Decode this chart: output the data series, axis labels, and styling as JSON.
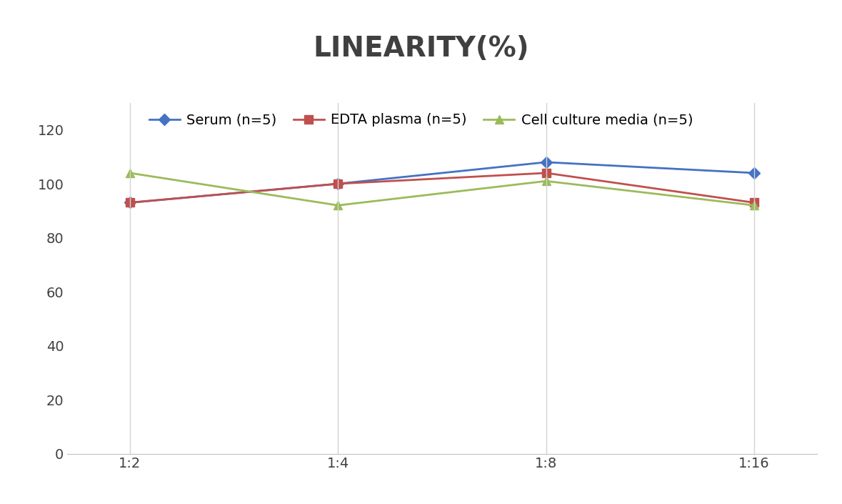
{
  "title": "LINEARITY(%)",
  "title_fontsize": 28,
  "title_fontweight": "bold",
  "title_color": "#404040",
  "x_labels": [
    "1:2",
    "1:4",
    "1:8",
    "1:16"
  ],
  "x_positions": [
    0,
    1,
    2,
    3
  ],
  "series": [
    {
      "label": "Serum (n=5)",
      "values": [
        93,
        100,
        108,
        104
      ],
      "color": "#4472C4",
      "marker": "D",
      "markersize": 8,
      "linewidth": 2
    },
    {
      "label": "EDTA plasma (n=5)",
      "values": [
        93,
        100,
        104,
        93
      ],
      "color": "#C0504D",
      "marker": "s",
      "markersize": 8,
      "linewidth": 2
    },
    {
      "label": "Cell culture media (n=5)",
      "values": [
        104,
        92,
        101,
        92
      ],
      "color": "#9BBB59",
      "marker": "^",
      "markersize": 8,
      "linewidth": 2
    }
  ],
  "ylim": [
    0,
    130
  ],
  "yticks": [
    0,
    20,
    40,
    60,
    80,
    100,
    120
  ],
  "background_color": "#ffffff",
  "grid_color": "#d3d3d3",
  "legend_fontsize": 14,
  "tick_fontsize": 14
}
